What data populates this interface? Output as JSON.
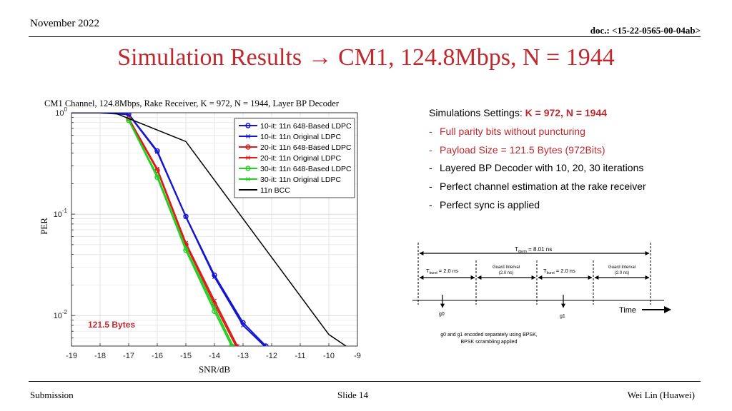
{
  "header": {
    "date": "November 2022",
    "doc": "doc.: <15-22-0565-00-04ab>"
  },
  "slide_title": "Simulation Results → CM1, 124.8Mbps, N = 1944",
  "settings": {
    "heading_prefix": "Simulations Settings: ",
    "heading_emph": "K = 972, N = 1944",
    "bullet_marker": "-",
    "bullets": [
      "Full parity bits without puncturing",
      "Payload Size = 121.5 Bytes (972Bits)",
      "Layered BP Decoder with 10, 20, 30 iterations",
      "Perfect channel estimation at the rake receiver",
      "Perfect sync is applied"
    ]
  },
  "timing_diagram": {
    "tsym": "T",
    "tsym_sub": "dsym",
    "tsym_val": " = 8.01 ns",
    "tburst": "T",
    "tburst_sub": "burst",
    "tburst_val": " = 2.0 ns",
    "guard_label": "Guard Interval",
    "guard_value": "(2.0 ns)",
    "g0": "g0",
    "g1": "g1",
    "time_label": "Time",
    "caption_line1": "g0 and g1 encoded separately using BPSK,",
    "caption_line2": "BPSK scrambling applied"
  },
  "footer": {
    "left": "Submission",
    "center": "Slide 14",
    "right": "Wei Lin (Huawei)"
  },
  "chart_data": {
    "type": "line",
    "title": "CM1 Channel, 124.8Mbps, Rake Receiver, K = 972, N = 1944, Layer BP Decoder",
    "xlabel": "SNR/dB",
    "ylabel": "PER",
    "xlim": [
      -19,
      -9
    ],
    "ylim": [
      0.005,
      1
    ],
    "yscale": "log",
    "xticks": [
      "-19",
      "-18",
      "-17",
      "-16",
      "-15",
      "-14",
      "-13",
      "-12",
      "-11",
      "-10",
      "-9"
    ],
    "yticks": [
      {
        "value": 1,
        "mantissa": "10",
        "exp": "0"
      },
      {
        "value": 0.1,
        "mantissa": "10",
        "exp": "-1"
      },
      {
        "value": 0.01,
        "mantissa": "10",
        "exp": "-2"
      }
    ],
    "grid": true,
    "legend_position": "top-right",
    "annotation": "121.5 Bytes",
    "series": [
      {
        "name": "10-it: 11n 648-Based LDPC",
        "color": "#1414d2",
        "marker": "circle",
        "x": [
          -19,
          -18,
          -17,
          -16,
          -15,
          -14,
          -13,
          -12.2
        ],
        "y": [
          1,
          1,
          0.97,
          0.42,
          0.095,
          0.025,
          0.0085,
          0.005
        ]
      },
      {
        "name": "10-it: 11n Original LDPC",
        "color": "#1414d2",
        "marker": "x",
        "x": [
          -19,
          -18,
          -17,
          -16,
          -15,
          -14,
          -13,
          -12.25
        ],
        "y": [
          1,
          1,
          0.96,
          0.41,
          0.094,
          0.024,
          0.008,
          0.005
        ]
      },
      {
        "name": "20-it: 11n 648-Based LDPC",
        "color": "#e01b1b",
        "marker": "circle",
        "x": [
          -17,
          -16,
          -15,
          -14,
          -13.25
        ],
        "y": [
          0.87,
          0.27,
          0.05,
          0.013,
          0.005
        ]
      },
      {
        "name": "20-it: 11n Original LDPC",
        "color": "#e01b1b",
        "marker": "x",
        "x": [
          -17,
          -16,
          -15,
          -14,
          -13.2
        ],
        "y": [
          0.88,
          0.28,
          0.052,
          0.014,
          0.005
        ]
      },
      {
        "name": "30-it: 11n 648-Based LDPC",
        "color": "#22d022",
        "marker": "circle",
        "x": [
          -17,
          -16,
          -15,
          -14,
          -13.4
        ],
        "y": [
          0.84,
          0.23,
          0.044,
          0.011,
          0.005
        ]
      },
      {
        "name": "30-it: 11n Original LDPC",
        "color": "#22d022",
        "marker": "x",
        "x": [
          -17,
          -16,
          -15,
          -14,
          -13.35
        ],
        "y": [
          0.85,
          0.24,
          0.046,
          0.012,
          0.005
        ]
      },
      {
        "name": "11n BCC",
        "color": "#000000",
        "marker": "none",
        "x": [
          -19,
          -17.5,
          -15,
          -10,
          -9.4
        ],
        "y": [
          1,
          1,
          0.52,
          0.0065,
          0.005
        ]
      }
    ]
  }
}
